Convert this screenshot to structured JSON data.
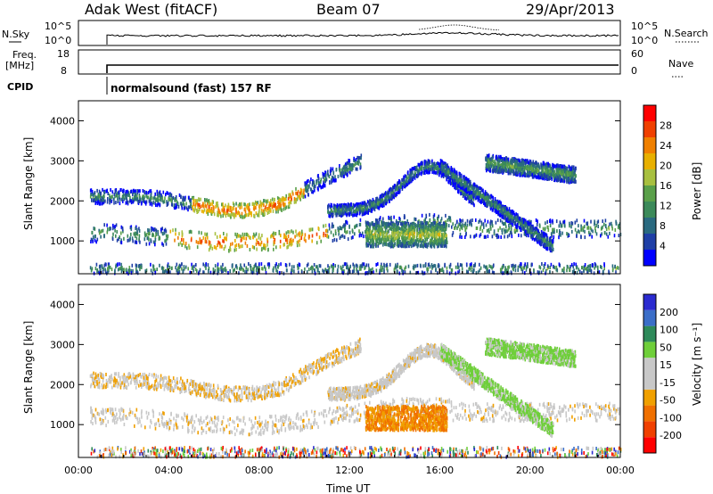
{
  "header": {
    "station": "Adak West (fitACF)",
    "beam": "Beam 07",
    "date": "29/Apr/2013"
  },
  "nsky_panel": {
    "left_label": "N.Sky",
    "y_ticks": [
      "10^5",
      "10^0"
    ],
    "right_ticks": [
      "10^5",
      "10^0"
    ],
    "right_label": "N.Search"
  },
  "freq_panel": {
    "left_label_1": "Freq.",
    "left_label_2": "[MHz]",
    "left_ticks": [
      "18",
      "8"
    ],
    "right_ticks": [
      "60",
      "0"
    ],
    "right_label": "Nave"
  },
  "cpid": {
    "label": "CPID",
    "mode": "normalsound (fast) 157 RF"
  },
  "colors": {
    "power": [
      "#0000ff",
      "#1f3fa6",
      "#2a6a80",
      "#3c8a5a",
      "#5aa04a",
      "#a8c040",
      "#e8b000",
      "#f08000",
      "#f04000",
      "#ff0000"
    ],
    "velocity": [
      "#2b2bd0",
      "#3b6ec8",
      "#2e8a5a",
      "#6fcf3a",
      "#c8c8c8",
      "#c8c8c8",
      "#f0a000",
      "#f07000",
      "#f04000",
      "#ff0000"
    ]
  },
  "chart_data": [
    {
      "type": "heatmap",
      "name": "power",
      "xlabel": "",
      "ylabel": "Slant Range [km]",
      "x_ticks": [
        "00:00",
        "04:00",
        "08:00",
        "12:00",
        "16:00",
        "20:00",
        "00:00"
      ],
      "y_ticks": [
        1000,
        2000,
        3000,
        4000
      ],
      "ylim": [
        180,
        4500
      ],
      "colorbar": {
        "label": "Power [dB]",
        "ticks": [
          4,
          8,
          12,
          16,
          20,
          24,
          28
        ],
        "range": [
          0,
          32
        ]
      }
    },
    {
      "type": "heatmap",
      "name": "velocity",
      "xlabel": "Time UT",
      "ylabel": "Slant Range [km]",
      "x_ticks": [
        "00:00",
        "04:00",
        "08:00",
        "12:00",
        "16:00",
        "20:00",
        "00:00"
      ],
      "y_ticks": [
        1000,
        2000,
        3000,
        4000
      ],
      "ylim": [
        180,
        4500
      ],
      "colorbar": {
        "label": "Velocity [m s⁻¹]",
        "ticks": [
          200,
          100,
          50,
          15,
          -15,
          -50,
          -100,
          -200
        ]
      }
    }
  ]
}
